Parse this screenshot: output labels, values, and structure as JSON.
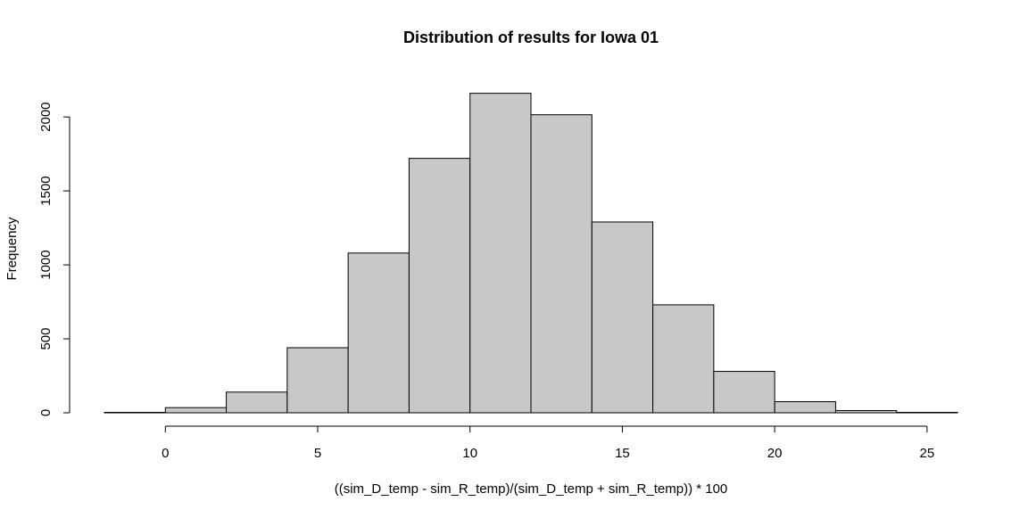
{
  "chart_data": {
    "type": "bar",
    "title": "Distribution of results for Iowa 01",
    "xlabel": "((sim_D_temp - sim_R_temp)/(sim_D_temp + sim_R_temp)) * 100",
    "ylabel": "Frequency",
    "xlim": [
      -2,
      26
    ],
    "ylim": [
      0,
      2200
    ],
    "xticks": [
      0,
      5,
      10,
      15,
      20,
      25
    ],
    "yticks": [
      0,
      500,
      1000,
      1500,
      2000
    ],
    "bins": [
      {
        "start": -2,
        "end": 0,
        "count": 3
      },
      {
        "start": 0,
        "end": 2,
        "count": 35
      },
      {
        "start": 2,
        "end": 4,
        "count": 140
      },
      {
        "start": 4,
        "end": 6,
        "count": 440
      },
      {
        "start": 6,
        "end": 8,
        "count": 1080
      },
      {
        "start": 8,
        "end": 10,
        "count": 1720
      },
      {
        "start": 10,
        "end": 12,
        "count": 2160
      },
      {
        "start": 12,
        "end": 14,
        "count": 2015
      },
      {
        "start": 14,
        "end": 16,
        "count": 1290
      },
      {
        "start": 16,
        "end": 18,
        "count": 730
      },
      {
        "start": 18,
        "end": 20,
        "count": 280
      },
      {
        "start": 20,
        "end": 22,
        "count": 75
      },
      {
        "start": 22,
        "end": 24,
        "count": 15
      },
      {
        "start": 24,
        "end": 26,
        "count": 3
      }
    ],
    "bar_color": "#c8c8c8",
    "edge_color": "#000000",
    "grid": false,
    "legend": "none"
  }
}
